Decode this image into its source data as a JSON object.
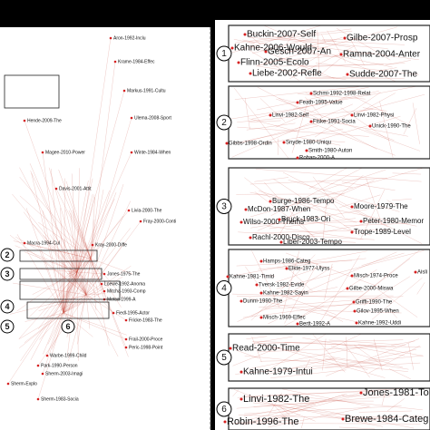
{
  "left_panel": {
    "nodes": [
      "Aron-1992-Inclu",
      "Krame-1984-Effec",
      "Markus-1991-Cultu",
      "Ulema-2008-Sport",
      "Winte-1984-When",
      "Hende-2009-The",
      "Magee-2010-Power",
      "Davis-2001-Attit",
      "Livia-2000-The",
      "Fray-2000-Conti",
      "Kray-2000-Diffe",
      "Macra-1994-Cul",
      "Jones-1975-The",
      "Loewe-1992-Anoma",
      "Mitcha-1993-Comp",
      "Metca-1999-A",
      "Fiedl-1995-Actor",
      "Fricke-1983-The",
      "Frail-2000-Proce",
      "Peric-1998-Point",
      "Warbe-1999-Child",
      "Park-1990-Person",
      "Sherm-2003-Imagi",
      "Sherm-Explo",
      "Sherm-1983-Socia"
    ],
    "markers": [
      "2",
      "3",
      "4",
      "5",
      "6"
    ]
  },
  "right_panel": {
    "insets": [
      {
        "number": "1",
        "nodes": [
          "Buckin-2007-Self",
          "Gilbe-2007-Prosp",
          "Kahne-2006-Would",
          "Gesch-2007-An",
          "Ramna-2004-Anter",
          "Flinn-2005-Ecolo",
          "Liebe-2002-Refle",
          "Sudde-2007-The"
        ]
      },
      {
        "number": "2",
        "nodes": [
          "Schmi-1992-1998-Relat",
          "Feath-1995-Value",
          "Linvi-1982-Self",
          "Linvi-1982-Physi",
          "Fiske-1991-Socia",
          "Unick-1990-The",
          "Gibbs-1998-Ordin",
          "Snyde-1980-Uniqu",
          "Smith-1980-Auton",
          "Rohan-2000-A"
        ]
      },
      {
        "number": "3",
        "nodes": [
          "Burge-1986-Tempo",
          "McDon-1987-When",
          "Moore-1979-The",
          "Wilso-2000-Thems",
          "Bruck-1983-Ori",
          "Peter-1980-Memor",
          "Trope-1989-Level",
          "Rachl-2000-Disco",
          "Liber-2003-Tempo"
        ]
      },
      {
        "number": "4",
        "nodes": [
          "Hamps-1986-Categ",
          "Kahne-1981-Timid",
          "Elkte-1977-Ulyss",
          "Misch-1974-Proce",
          "Tversk-1982-Evide",
          "Kahne-1982-Sayin",
          "Gilbe-2000-Miswa",
          "Dunni-1990-The",
          "Griffi-1990-The",
          "Misch-1969-Effec",
          "Gilov-1995-When",
          "Bertt-1992-A",
          "Kahne-1992-Uddi",
          "Aisli"
        ]
      },
      {
        "number": "5",
        "nodes": [
          "Read-2000-Time",
          "Kahne-1979-Intui"
        ]
      },
      {
        "number": "6",
        "nodes": [
          "Linvi-1982-The",
          "Jones-1981-Tort",
          "Robin-1996-The",
          "Brewe-1984-Categ"
        ]
      }
    ]
  }
}
